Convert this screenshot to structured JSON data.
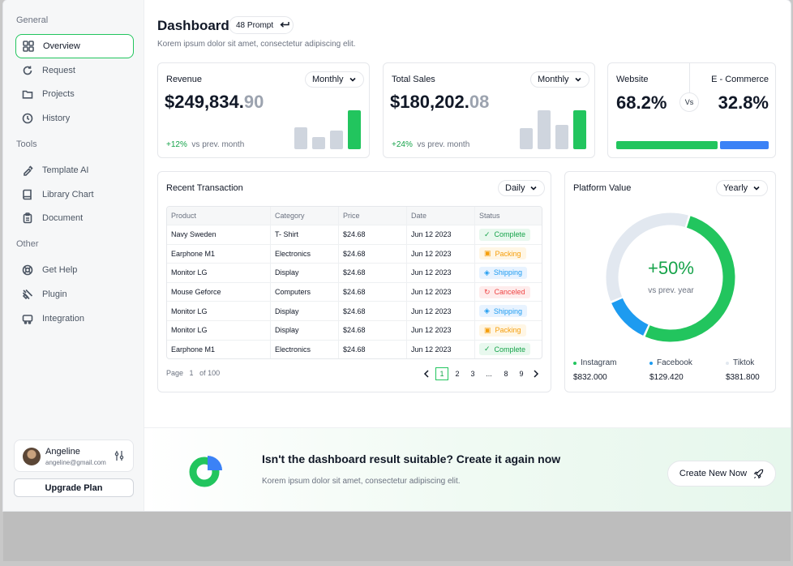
{
  "sidebar": {
    "groups": {
      "general": "General",
      "tools": "Tools",
      "other": "Other"
    },
    "items": [
      {
        "label": "Overview",
        "icon": "grid-icon"
      },
      {
        "label": "Request",
        "icon": "refresh-icon"
      },
      {
        "label": "Projects",
        "icon": "folder-icon"
      },
      {
        "label": "History",
        "icon": "clock-icon"
      },
      {
        "label": "Template AI",
        "icon": "brush-icon"
      },
      {
        "label": "Library Chart",
        "icon": "book-icon"
      },
      {
        "label": "Document",
        "icon": "clipboard-icon"
      },
      {
        "label": "Get Help",
        "icon": "lifebuoy-icon"
      },
      {
        "label": "Plugin",
        "icon": "plug-icon"
      },
      {
        "label": "Integration",
        "icon": "integration-icon"
      }
    ],
    "user": {
      "name": "Angeline",
      "email": "angeline@gmail.com"
    },
    "upgrade_label": "Upgrade Plan"
  },
  "header": {
    "title": "Dashboard",
    "prompt": "48 Prompt",
    "subtitle": "Korem ipsum dolor sit amet, consectetur adipiscing elit."
  },
  "revenue": {
    "label": "Revenue",
    "period": "Monthly",
    "value_main": "$249,834.",
    "value_dec": "90",
    "growth": "+12%",
    "growth_text": "vs prev. month",
    "bars": [
      0.45,
      0.25,
      0.38,
      0.78
    ]
  },
  "sales": {
    "label": "Total Sales",
    "period": "Monthly",
    "value_main": "$180,202.",
    "value_dec": "08",
    "growth": "+24%",
    "growth_text": "vs prev. month",
    "bars": [
      0.42,
      0.78,
      0.5,
      0.78
    ]
  },
  "compare": {
    "left_label": "Website",
    "right_label": "E - Commerce",
    "left_value": "68.2%",
    "right_value": "32.8%",
    "vs": "Vs",
    "left_share": 0.682,
    "right_share": 0.328
  },
  "transactions": {
    "title": "Recent Transaction",
    "period": "Daily",
    "columns": [
      "Product",
      "Category",
      "Price",
      "Date",
      "Status"
    ],
    "rows": [
      [
        "Navy Sweden",
        "T- Shirt",
        "$24.68",
        "Jun 12 2023",
        "Complete"
      ],
      [
        "Earphone M1",
        "Electronics",
        "$24.68",
        "Jun 12 2023",
        "Packing"
      ],
      [
        "Monitor LG",
        "Display",
        "$24.68",
        "Jun 12 2023",
        "Shipping"
      ],
      [
        "Mouse Geforce",
        "Computers",
        "$24.68",
        "Jun 12 2023",
        "Canceled"
      ],
      [
        "Monitor LG",
        "Display",
        "$24.68",
        "Jun 12 2023",
        "Shipping"
      ],
      [
        "Monitor LG",
        "Display",
        "$24.68",
        "Jun 12 2023",
        "Packing"
      ],
      [
        "Earphone M1",
        "Electronics",
        "$24.68",
        "Jun 12 2023",
        "Complete"
      ]
    ],
    "page_label": "Page",
    "page_current": "1",
    "page_total": "of 100",
    "pages": [
      "1",
      "2",
      "3",
      "...",
      "8",
      "9"
    ]
  },
  "platform": {
    "title": "Platform Value",
    "period": "Yearly",
    "center_value": "+50%",
    "center_text": "vs prev. year",
    "segments": [
      {
        "name": "Instagram",
        "value": "$832.000",
        "share": 0.52,
        "color": "#22c55e"
      },
      {
        "name": "Facebook",
        "value": "$129.420",
        "share": 0.12,
        "color": "#1d9bf0"
      },
      {
        "name": "Tiktok",
        "value": "$381.800",
        "share": 0.36,
        "color": "#e2e8f0"
      }
    ]
  },
  "banner": {
    "heading": "Isn't the dashboard result suitable?  Create it again now",
    "sub": "Korem ipsum dolor sit amet, consectetur adipiscing elit.",
    "cta": "Create New Now"
  },
  "colors": {
    "accent": "#22c55e",
    "blue": "#3b82f6"
  }
}
